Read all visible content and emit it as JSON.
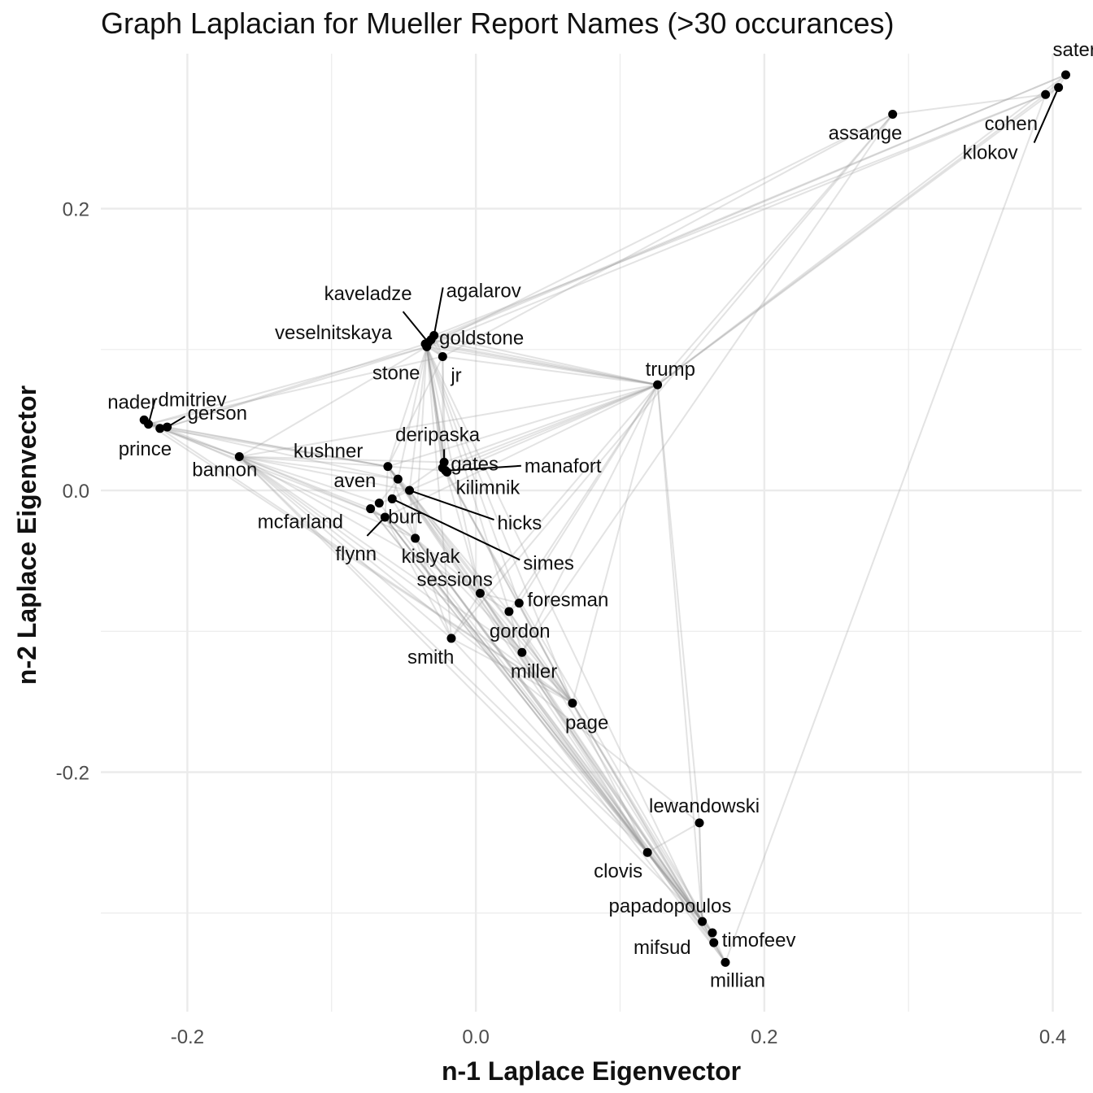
{
  "chart_data": {
    "type": "scatter",
    "title": "Graph Laplacian for Mueller Report Names (>30 occurances)",
    "xlabel": "n-1 Laplace Eigenvector",
    "ylabel": "n-2 Laplace Eigenvector",
    "xlim": [
      -0.26,
      0.42
    ],
    "ylim": [
      -0.37,
      0.31
    ],
    "x_ticks": [
      -0.2,
      0.0,
      0.2,
      0.4
    ],
    "x_tick_labels": [
      "-0.2",
      "0.0",
      "0.2",
      "0.4"
    ],
    "y_ticks": [
      -0.2,
      0.0,
      0.2
    ],
    "y_tick_labels": [
      "-0.2",
      "0.0",
      "0.2"
    ],
    "grid": true,
    "point_color": "#000000",
    "edge_color": "#9a9a9a",
    "grid_color": "#ebebeb",
    "points": [
      {
        "name": "sater",
        "x": 0.409,
        "y": 0.295
      },
      {
        "name": "cohen",
        "x": 0.395,
        "y": 0.281
      },
      {
        "name": "klokov",
        "x": 0.404,
        "y": 0.286
      },
      {
        "name": "assange",
        "x": 0.289,
        "y": 0.267
      },
      {
        "name": "trump",
        "x": 0.126,
        "y": 0.075
      },
      {
        "name": "kaveladze",
        "x": -0.033,
        "y": 0.105
      },
      {
        "name": "agalarov",
        "x": -0.029,
        "y": 0.11
      },
      {
        "name": "veselnitskaya",
        "x": -0.035,
        "y": 0.104
      },
      {
        "name": "goldstone",
        "x": -0.031,
        "y": 0.107
      },
      {
        "name": "stone",
        "x": -0.034,
        "y": 0.102
      },
      {
        "name": "jr",
        "x": -0.023,
        "y": 0.095
      },
      {
        "name": "dmitriev",
        "x": -0.227,
        "y": 0.047
      },
      {
        "name": "nader",
        "x": -0.23,
        "y": 0.05
      },
      {
        "name": "gerson",
        "x": -0.214,
        "y": 0.045
      },
      {
        "name": "prince",
        "x": -0.219,
        "y": 0.044
      },
      {
        "name": "bannon",
        "x": -0.164,
        "y": 0.024
      },
      {
        "name": "deripaska",
        "x": -0.022,
        "y": 0.02
      },
      {
        "name": "gates",
        "x": -0.023,
        "y": 0.016
      },
      {
        "name": "manafort",
        "x": -0.021,
        "y": 0.014
      },
      {
        "name": "kilimnik",
        "x": -0.02,
        "y": 0.013
      },
      {
        "name": "kushner",
        "x": -0.061,
        "y": 0.017
      },
      {
        "name": "aven",
        "x": -0.054,
        "y": 0.008
      },
      {
        "name": "hicks",
        "x": -0.046,
        "y": 0.0
      },
      {
        "name": "simes",
        "x": -0.058,
        "y": -0.006
      },
      {
        "name": "mcfarland",
        "x": -0.073,
        "y": -0.013
      },
      {
        "name": "burt",
        "x": -0.067,
        "y": -0.009
      },
      {
        "name": "flynn",
        "x": -0.063,
        "y": -0.019
      },
      {
        "name": "kislyak",
        "x": -0.042,
        "y": -0.034
      },
      {
        "name": "sessions",
        "x": 0.003,
        "y": -0.073
      },
      {
        "name": "foresman",
        "x": 0.03,
        "y": -0.08
      },
      {
        "name": "gordon",
        "x": 0.023,
        "y": -0.086
      },
      {
        "name": "smith",
        "x": -0.017,
        "y": -0.105
      },
      {
        "name": "miller",
        "x": 0.032,
        "y": -0.115
      },
      {
        "name": "page",
        "x": 0.067,
        "y": -0.151
      },
      {
        "name": "lewandowski",
        "x": 0.155,
        "y": -0.236
      },
      {
        "name": "clovis",
        "x": 0.119,
        "y": -0.257
      },
      {
        "name": "papadopoulos",
        "x": 0.157,
        "y": -0.306
      },
      {
        "name": "mifsud",
        "x": 0.164,
        "y": -0.314
      },
      {
        "name": "timofeev",
        "x": 0.165,
        "y": -0.321
      },
      {
        "name": "millian",
        "x": 0.173,
        "y": -0.335
      }
    ],
    "edges": [
      [
        "trump",
        "sater"
      ],
      [
        "trump",
        "cohen"
      ],
      [
        "trump",
        "klokov"
      ],
      [
        "trump",
        "assange"
      ],
      [
        "trump",
        "jr"
      ],
      [
        "trump",
        "kushner"
      ],
      [
        "trump",
        "manafort"
      ],
      [
        "trump",
        "gates"
      ],
      [
        "trump",
        "deripaska"
      ],
      [
        "trump",
        "hicks"
      ],
      [
        "trump",
        "sessions"
      ],
      [
        "trump",
        "page"
      ],
      [
        "trump",
        "flynn"
      ],
      [
        "trump",
        "stone"
      ],
      [
        "trump",
        "lewandowski"
      ],
      [
        "trump",
        "papadopoulos"
      ],
      [
        "trump",
        "bannon"
      ],
      [
        "trump",
        "goldstone"
      ],
      [
        "trump",
        "miller"
      ],
      [
        "trump",
        "agalarov"
      ],
      [
        "trump",
        "kaveladze"
      ],
      [
        "trump",
        "veselnitskaya"
      ],
      [
        "trump",
        "foresman"
      ],
      [
        "trump",
        "gordon"
      ],
      [
        "cohen",
        "sater"
      ],
      [
        "cohen",
        "klokov"
      ],
      [
        "klokov",
        "sater"
      ],
      [
        "cohen",
        "assange"
      ],
      [
        "cohen",
        "stone"
      ],
      [
        "cohen",
        "agalarov"
      ],
      [
        "cohen",
        "millian"
      ],
      [
        "sater",
        "goldstone"
      ],
      [
        "sater",
        "veselnitskaya"
      ],
      [
        "stone",
        "assange"
      ],
      [
        "assange",
        "smith"
      ],
      [
        "assange",
        "jr"
      ],
      [
        "assange",
        "miller"
      ],
      [
        "kaveladze",
        "agalarov"
      ],
      [
        "kaveladze",
        "veselnitskaya"
      ],
      [
        "kaveladze",
        "goldstone"
      ],
      [
        "agalarov",
        "goldstone"
      ],
      [
        "agalarov",
        "veselnitskaya"
      ],
      [
        "goldstone",
        "veselnitskaya"
      ],
      [
        "jr",
        "goldstone"
      ],
      [
        "jr",
        "veselnitskaya"
      ],
      [
        "jr",
        "agalarov"
      ],
      [
        "jr",
        "kaveladze"
      ],
      [
        "jr",
        "kushner"
      ],
      [
        "jr",
        "manafort"
      ],
      [
        "jr",
        "stone"
      ],
      [
        "jr",
        "dmitriev"
      ],
      [
        "jr",
        "gates"
      ],
      [
        "dmitriev",
        "nader"
      ],
      [
        "dmitriev",
        "prince"
      ],
      [
        "dmitriev",
        "gerson"
      ],
      [
        "nader",
        "prince"
      ],
      [
        "nader",
        "gerson"
      ],
      [
        "prince",
        "gerson"
      ],
      [
        "dmitriev",
        "aven"
      ],
      [
        "dmitriev",
        "kushner"
      ],
      [
        "dmitriev",
        "bannon"
      ],
      [
        "prince",
        "bannon"
      ],
      [
        "nader",
        "bannon"
      ],
      [
        "gerson",
        "kushner"
      ],
      [
        "dmitriev",
        "stone"
      ],
      [
        "prince",
        "kushner"
      ],
      [
        "dmitriev",
        "flynn"
      ],
      [
        "nader",
        "kislyak"
      ],
      [
        "gerson",
        "stone"
      ],
      [
        "prince",
        "page"
      ],
      [
        "dmitriev",
        "page"
      ],
      [
        "gerson",
        "veselnitskaya"
      ],
      [
        "bannon",
        "kushner"
      ],
      [
        "bannon",
        "flynn"
      ],
      [
        "bannon",
        "mcfarland"
      ],
      [
        "bannon",
        "burt"
      ],
      [
        "bannon",
        "aven"
      ],
      [
        "bannon",
        "hicks"
      ],
      [
        "bannon",
        "page"
      ],
      [
        "bannon",
        "miller"
      ],
      [
        "bannon",
        "papadopoulos"
      ],
      [
        "bannon",
        "lewandowski"
      ],
      [
        "bannon",
        "stone"
      ],
      [
        "bannon",
        "clovis"
      ],
      [
        "bannon",
        "deripaska"
      ],
      [
        "bannon",
        "sessions"
      ],
      [
        "bannon",
        "smith"
      ],
      [
        "kushner",
        "kislyak"
      ],
      [
        "kushner",
        "flynn"
      ],
      [
        "kushner",
        "aven"
      ],
      [
        "kushner",
        "hicks"
      ],
      [
        "kushner",
        "gordon"
      ],
      [
        "kushner",
        "sessions"
      ],
      [
        "kushner",
        "manafort"
      ],
      [
        "kushner",
        "page"
      ],
      [
        "kushner",
        "papadopoulos"
      ],
      [
        "kushner",
        "stone"
      ],
      [
        "kushner",
        "clovis"
      ],
      [
        "flynn",
        "kislyak"
      ],
      [
        "flynn",
        "mcfarland"
      ],
      [
        "flynn",
        "smith"
      ],
      [
        "flynn",
        "papadopoulos"
      ],
      [
        "mcfarland",
        "kislyak"
      ],
      [
        "mcfarland",
        "burt"
      ],
      [
        "aven",
        "burt"
      ],
      [
        "aven",
        "simes"
      ],
      [
        "hicks",
        "simes"
      ],
      [
        "hicks",
        "kislyak"
      ],
      [
        "simes",
        "kislyak"
      ],
      [
        "burt",
        "simes"
      ],
      [
        "aven",
        "stone"
      ],
      [
        "hicks",
        "stone"
      ],
      [
        "simes",
        "deripaska"
      ],
      [
        "hicks",
        "miller"
      ],
      [
        "manafort",
        "gates"
      ],
      [
        "manafort",
        "kilimnik"
      ],
      [
        "manafort",
        "deripaska"
      ],
      [
        "gates",
        "kilimnik"
      ],
      [
        "gates",
        "deripaska"
      ],
      [
        "kilimnik",
        "deripaska"
      ],
      [
        "manafort",
        "stone"
      ],
      [
        "gates",
        "stone"
      ],
      [
        "manafort",
        "page"
      ],
      [
        "deripaska",
        "stone"
      ],
      [
        "kilimnik",
        "page"
      ],
      [
        "manafort",
        "sessions"
      ],
      [
        "sessions",
        "kislyak"
      ],
      [
        "sessions",
        "page"
      ],
      [
        "sessions",
        "gordon"
      ],
      [
        "sessions",
        "papadopoulos"
      ],
      [
        "sessions",
        "clovis"
      ],
      [
        "sessions",
        "miller"
      ],
      [
        "sessions",
        "foresman"
      ],
      [
        "sessions",
        "smith"
      ],
      [
        "page",
        "gordon"
      ],
      [
        "page",
        "foresman"
      ],
      [
        "page",
        "clovis"
      ],
      [
        "page",
        "miller"
      ],
      [
        "page",
        "papadopoulos"
      ],
      [
        "page",
        "kislyak"
      ],
      [
        "page",
        "stone"
      ],
      [
        "page",
        "hicks"
      ],
      [
        "gordon",
        "papadopoulos"
      ],
      [
        "gordon",
        "foresman"
      ],
      [
        "miller",
        "papadopoulos"
      ],
      [
        "miller",
        "clovis"
      ],
      [
        "smith",
        "page"
      ],
      [
        "smith",
        "kislyak"
      ],
      [
        "stone",
        "smith"
      ],
      [
        "stone",
        "miller"
      ],
      [
        "stone",
        "foresman"
      ],
      [
        "stone",
        "sessions"
      ],
      [
        "stone",
        "kislyak"
      ],
      [
        "stone",
        "papadopoulos"
      ],
      [
        "stone",
        "kilimnik"
      ],
      [
        "stone",
        "deripaska"
      ],
      [
        "stone",
        "gates"
      ],
      [
        "clovis",
        "papadopoulos"
      ],
      [
        "clovis",
        "mifsud"
      ],
      [
        "clovis",
        "timofeev"
      ],
      [
        "clovis",
        "millian"
      ],
      [
        "clovis",
        "lewandowski"
      ],
      [
        "clovis",
        "kislyak"
      ],
      [
        "clovis",
        "flynn"
      ],
      [
        "clovis",
        "mcfarland"
      ],
      [
        "clovis",
        "smith"
      ],
      [
        "papadopoulos",
        "mifsud"
      ],
      [
        "papadopoulos",
        "timofeev"
      ],
      [
        "papadopoulos",
        "millian"
      ],
      [
        "papadopoulos",
        "lewandowski"
      ],
      [
        "mifsud",
        "timofeev"
      ],
      [
        "mifsud",
        "millian"
      ],
      [
        "timofeev",
        "millian"
      ],
      [
        "lewandowski",
        "papadopoulos"
      ],
      [
        "papadopoulos",
        "kislyak"
      ],
      [
        "papadopoulos",
        "burt"
      ],
      [
        "papadopoulos",
        "mcfarland"
      ],
      [
        "papadopoulos",
        "aven"
      ],
      [
        "papadopoulos",
        "flynn"
      ],
      [
        "mifsud",
        "kislyak"
      ],
      [
        "mifsud",
        "page"
      ],
      [
        "mifsud",
        "gates"
      ],
      [
        "timofeev",
        "kislyak"
      ],
      [
        "millian",
        "page"
      ],
      [
        "millian",
        "flynn"
      ]
    ]
  }
}
